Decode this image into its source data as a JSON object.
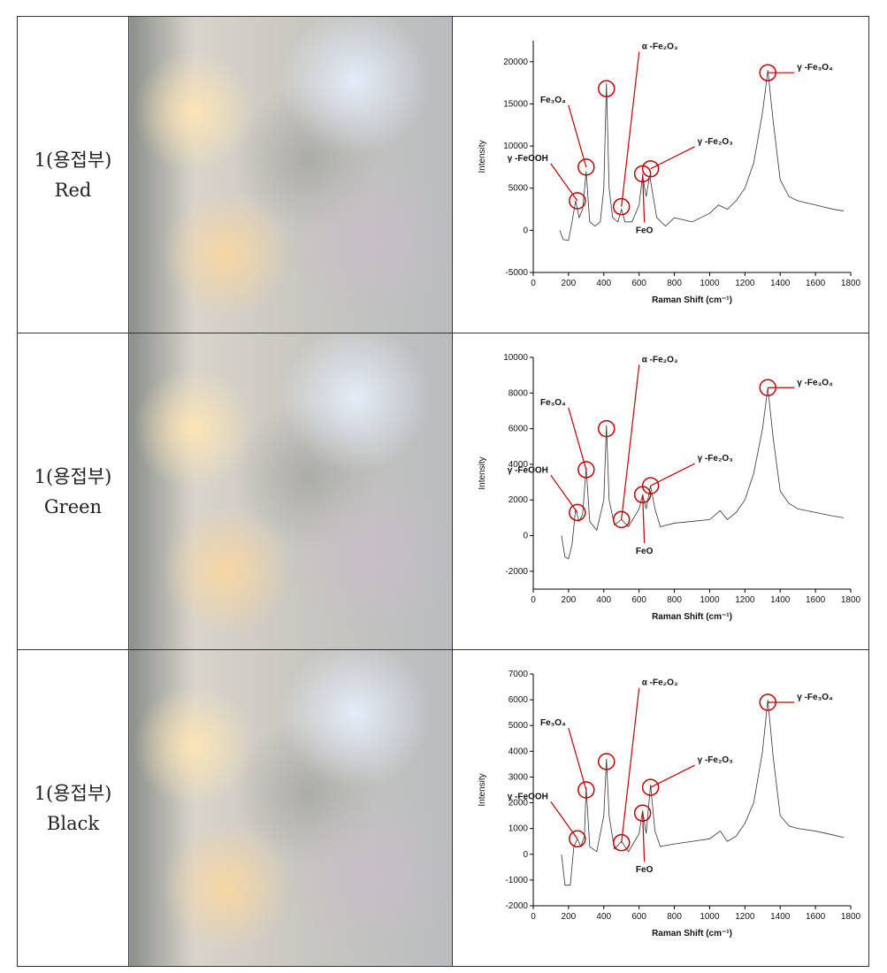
{
  "rows": [
    {
      "label": [
        "1(용접부)",
        "Red"
      ],
      "chart": {
        "type": "line",
        "x_label": "Raman Shift (cm⁻¹)",
        "y_label": "Intensity",
        "xlim": [
          0,
          1800
        ],
        "xticks": [
          0,
          200,
          400,
          600,
          800,
          1000,
          1200,
          1400,
          1600,
          1800
        ],
        "ylim": [
          -5000,
          22500
        ],
        "yticks": [
          -5000,
          0,
          5000,
          10000,
          15000,
          20000
        ],
        "color": "#333333",
        "x": [
          150,
          170,
          200,
          220,
          240,
          260,
          280,
          300,
          320,
          350,
          380,
          400,
          415,
          430,
          450,
          480,
          500,
          520,
          560,
          600,
          620,
          640,
          660,
          680,
          700,
          750,
          800,
          900,
          1000,
          1050,
          1100,
          1150,
          1200,
          1250,
          1300,
          1330,
          1360,
          1400,
          1450,
          1500,
          1600,
          1700,
          1760
        ],
        "values": [
          0,
          -1100,
          -1200,
          1000,
          3500,
          1500,
          2500,
          7000,
          1000,
          500,
          1000,
          5000,
          17500,
          5000,
          1500,
          1000,
          2500,
          1000,
          1000,
          3000,
          6500,
          4000,
          6500,
          4000,
          1500,
          500,
          1500,
          1000,
          2000,
          3000,
          2500,
          3500,
          5000,
          8000,
          14000,
          19000,
          13000,
          6000,
          4000,
          3500,
          3000,
          2500,
          2300
        ],
        "annotations": [
          {
            "text": "γ -FeOOH",
            "x": 250,
            "y": 3500
          },
          {
            "text": "Fe₃O₄",
            "x": 300,
            "y": 7500
          },
          {
            "text": null,
            "x": 415,
            "y": 16800
          },
          {
            "text": "α -Fe₂O₃",
            "x": 500,
            "y": 2800
          },
          {
            "text": "FeO",
            "x": 620,
            "y": 6700
          },
          {
            "text": "γ -Fe₂O₃",
            "x": 665,
            "y": 7300
          },
          {
            "text": "γ -Fe₃O₄",
            "x": 1330,
            "y": 18700
          }
        ]
      }
    },
    {
      "label": [
        "1(용접부)",
        "Green"
      ],
      "chart": {
        "type": "line",
        "x_label": "Raman Shift (cm⁻¹)",
        "y_label": "Intensity",
        "xlim": [
          0,
          1800
        ],
        "xticks": [
          0,
          200,
          400,
          600,
          800,
          1000,
          1200,
          1400,
          1600,
          1800
        ],
        "ylim": [
          -3000,
          10000
        ],
        "yticks": [
          -2000,
          0,
          2000,
          4000,
          6000,
          8000,
          10000
        ],
        "color": "#333333",
        "x": [
          160,
          180,
          200,
          220,
          240,
          260,
          280,
          300,
          320,
          360,
          400,
          415,
          430,
          460,
          500,
          540,
          600,
          620,
          640,
          665,
          690,
          720,
          800,
          900,
          1000,
          1060,
          1100,
          1150,
          1200,
          1250,
          1300,
          1330,
          1360,
          1400,
          1450,
          1500,
          1600,
          1700,
          1760
        ],
        "values": [
          0,
          -1200,
          -1300,
          -500,
          1500,
          800,
          1200,
          3800,
          800,
          300,
          2000,
          6200,
          2000,
          600,
          900,
          500,
          1500,
          2300,
          1500,
          2800,
          1500,
          500,
          700,
          800,
          900,
          1400,
          900,
          1300,
          2000,
          3500,
          6000,
          8300,
          5500,
          2500,
          1800,
          1500,
          1300,
          1100,
          1000
        ],
        "annotations": [
          {
            "text": "γ -FeOOH",
            "x": 250,
            "y": 1300
          },
          {
            "text": "Fe₃O₄",
            "x": 300,
            "y": 3700
          },
          {
            "text": null,
            "x": 415,
            "y": 6000
          },
          {
            "text": "α -Fe₂O₃",
            "x": 500,
            "y": 900
          },
          {
            "text": "FeO",
            "x": 620,
            "y": 2300
          },
          {
            "text": "γ -Fe₂O₃",
            "x": 665,
            "y": 2800
          },
          {
            "text": "γ -Fe₃O₄",
            "x": 1330,
            "y": 8300
          }
        ]
      }
    },
    {
      "label": [
        "1(용접부)",
        "Black"
      ],
      "chart": {
        "type": "line",
        "x_label": "Raman Shift (cm⁻¹)",
        "y_label": "Intensity",
        "xlim": [
          0,
          1800
        ],
        "xticks": [
          0,
          200,
          400,
          600,
          800,
          1000,
          1200,
          1400,
          1600,
          1800
        ],
        "ylim": [
          -2000,
          7000
        ],
        "yticks": [
          -2000,
          -1000,
          0,
          1000,
          2000,
          3000,
          4000,
          5000,
          6000,
          7000
        ],
        "color": "#333333",
        "x": [
          160,
          180,
          210,
          230,
          250,
          270,
          290,
          300,
          320,
          360,
          400,
          415,
          430,
          460,
          500,
          540,
          600,
          620,
          640,
          665,
          690,
          720,
          800,
          900,
          1000,
          1060,
          1100,
          1150,
          1200,
          1250,
          1300,
          1330,
          1360,
          1400,
          1450,
          1500,
          1600,
          1700,
          1760
        ],
        "values": [
          0,
          -1200,
          -1200,
          300,
          600,
          300,
          700,
          2600,
          300,
          100,
          1500,
          3700,
          1500,
          200,
          500,
          100,
          800,
          1700,
          800,
          2700,
          900,
          300,
          400,
          500,
          600,
          900,
          500,
          700,
          1200,
          2000,
          4000,
          6000,
          3800,
          1500,
          1100,
          1000,
          900,
          750,
          650
        ],
        "annotations": [
          {
            "text": "γ -FeOOH",
            "x": 250,
            "y": 600
          },
          {
            "text": "Fe₃O₄",
            "x": 300,
            "y": 2500
          },
          {
            "text": null,
            "x": 415,
            "y": 3600
          },
          {
            "text": "α -Fe₂O₃",
            "x": 500,
            "y": 450
          },
          {
            "text": "FeO",
            "x": 620,
            "y": 1600
          },
          {
            "text": "γ -Fe₂O₃",
            "x": 665,
            "y": 2600
          },
          {
            "text": "γ -Fe₃O₄",
            "x": 1330,
            "y": 5900
          }
        ]
      }
    }
  ]
}
